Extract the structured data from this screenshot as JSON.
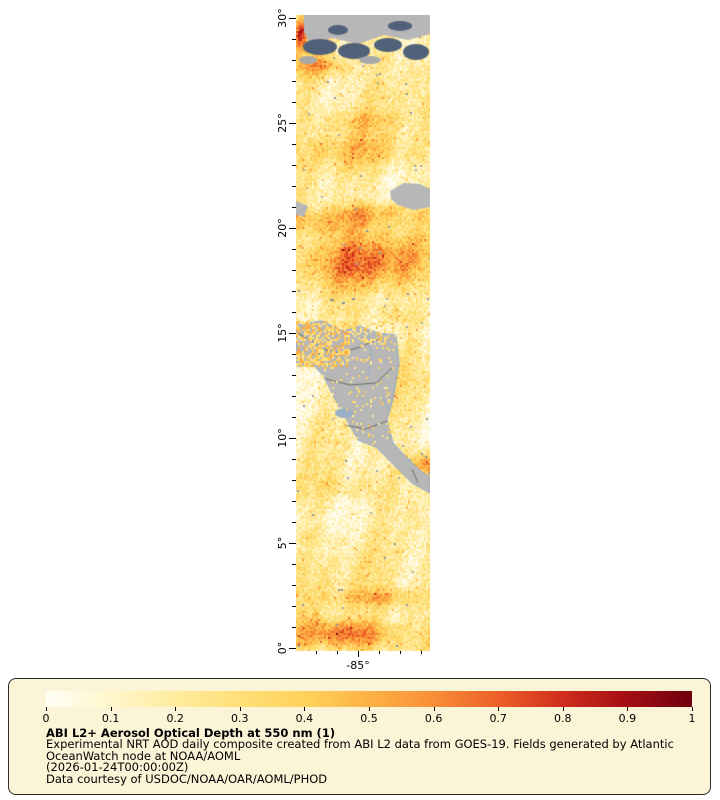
{
  "map": {
    "lat_tick_labels": [
      "30°",
      "25°",
      "20°",
      "15°",
      "10°",
      "5°",
      "0°"
    ],
    "lon_tick_labels": [
      "-85°"
    ],
    "colors": {
      "land": "#b7b7b7",
      "no_data_cloud": "#51617a",
      "coast_river": "#8fa9c9",
      "border_line": "#5a5a5a",
      "lake": "#9ab0c8"
    }
  },
  "legend": {
    "colorbar_tick_labels": [
      "0",
      "0.1",
      "0.2",
      "0.3",
      "0.4",
      "0.5",
      "0.6",
      "0.7",
      "0.8",
      "0.9",
      "1"
    ],
    "colorbar_stops": [
      "#fffef5",
      "#fff6cc",
      "#ffec9e",
      "#ffdf78",
      "#fed25a",
      "#fdb245",
      "#f98e38",
      "#ec5f28",
      "#d02d1d",
      "#a30e14",
      "#6f000e"
    ],
    "title": "ABI L2+ Aerosol Optical Depth at 550 nm (1)",
    "description_lines": [
      "Experimental NRT AOD daily composite created from ABI L2 data from GOES-19. Fields generated by Atlantic",
      "OceanWatch node at NOAA/AOML"
    ],
    "timestamp_line": "(2026-01-24T00:00:00Z)",
    "credit_line": "Data courtesy of USDOC/NOAA/OAR/AOML/PHOD"
  }
}
